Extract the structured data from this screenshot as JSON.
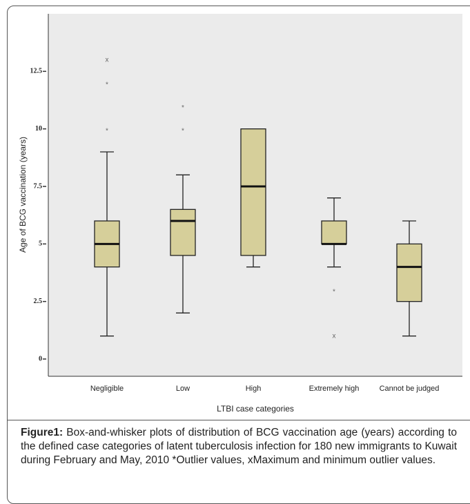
{
  "chart_data": {
    "type": "box",
    "y_label": "Age of BCG vaccination (years)",
    "x_label": "LTBI case categories",
    "categories": [
      "Negligible",
      "Low",
      "High",
      "Extremely high",
      "Cannot be judged"
    ],
    "boxes": [
      {
        "low": 1,
        "q1": 4,
        "median": 5,
        "q3": 6,
        "high": 9,
        "outliers": [
          {
            "value": 10,
            "marker": "*"
          },
          {
            "value": 12,
            "marker": "*"
          },
          {
            "value": 13,
            "marker": "x"
          }
        ]
      },
      {
        "low": 2,
        "q1": 4.5,
        "median": 6,
        "q3": 6.5,
        "high": 8,
        "outliers": [
          {
            "value": 10,
            "marker": "*"
          },
          {
            "value": 11,
            "marker": "*"
          }
        ]
      },
      {
        "low": 4,
        "q1": 4.5,
        "median": 7.5,
        "q3": 10,
        "high": 10,
        "outliers": []
      },
      {
        "low": 4,
        "q1": 5,
        "median": 5,
        "q3": 6,
        "high": 7,
        "outliers": [
          {
            "value": 3,
            "marker": "*"
          },
          {
            "value": 1,
            "marker": "x"
          }
        ]
      },
      {
        "low": 1,
        "q1": 2.5,
        "median": 4,
        "q3": 5,
        "high": 6,
        "outliers": []
      }
    ],
    "color": "#d6cf9a",
    "background": "#ebebeb",
    "ylim": [
      -0.75,
      15
    ],
    "yticks": [
      0,
      2.5,
      5,
      7.5,
      10,
      12.5
    ]
  },
  "caption": {
    "label": "Figure1:",
    "text": "Box-and-whisker plots of distribution of BCG vaccination age (years) according to the defined case categories of latent tuberculosis infection for 180 new immigrants to Kuwait during February and May, 2010 *Outlier values, xMaximum and minimum outlier values."
  }
}
